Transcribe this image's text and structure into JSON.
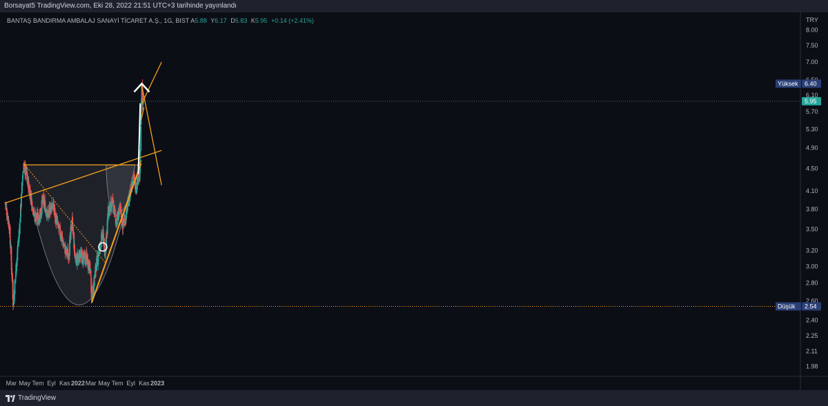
{
  "header": {
    "published_line": "Borsayat5 TradingView.com, Eki 28, 2022 21:51 UTC+3 tarihinde yayınlandı"
  },
  "legend": {
    "symbol": "BANTAŞ BANDIRMA AMBALAJ SANAYİ TİCARET A.Ş., 1G, BIST",
    "open_label": "A",
    "open_value": "5.88",
    "high_label": "Y",
    "high_value": "6.17",
    "low_label": "D",
    "low_value": "5.83",
    "close_label": "K",
    "close_value": "5.95",
    "change": "+0.14 (+2.41%)"
  },
  "footer": {
    "brand": "TradingView"
  },
  "colors": {
    "background": "#0c0e15",
    "up": "#26a69a",
    "down": "#ef5350",
    "drawing": "#f7a11a",
    "price_label_bg": "#26a69a",
    "marker_bg": "#2a3f75"
  },
  "chart_data": {
    "type": "candlestick",
    "currency_label": "TRY",
    "y_ticks": [
      "8.00",
      "7.50",
      "7.00",
      "6.50",
      "6.10",
      "5.70",
      "5.30",
      "4.90",
      "4.50",
      "4.10",
      "3.80",
      "3.50",
      "3.20",
      "3.00",
      "2.80",
      "2.60",
      "2.40",
      "2.25",
      "2.11",
      "1.98"
    ],
    "x_ticks": [
      "Mar",
      "May",
      "Tem",
      "Eyl",
      "Kas",
      "2022",
      "Mar",
      "May",
      "Tem",
      "Eyl",
      "Kas",
      "2023"
    ],
    "bold_x_ticks": [
      "2022",
      "2023"
    ],
    "last_price": "5.95",
    "high_marker": {
      "label": "Yüksek",
      "value": "6.40"
    },
    "low_marker": {
      "label": "Düşük",
      "value": "2.54"
    },
    "scale": "log",
    "ylim": [
      1.9,
      8.6
    ],
    "anchors": [
      [
        "2021-02-01",
        3.9
      ],
      [
        "2021-02-20",
        3.55
      ],
      [
        "2021-03-10",
        2.55
      ],
      [
        "2021-03-25",
        3.05
      ],
      [
        "2021-04-10",
        3.6
      ],
      [
        "2021-04-25",
        4.55
      ],
      [
        "2021-05-10",
        4.4
      ],
      [
        "2021-05-25",
        4.1
      ],
      [
        "2021-06-15",
        3.7
      ],
      [
        "2021-07-05",
        3.65
      ],
      [
        "2021-07-25",
        3.95
      ],
      [
        "2021-08-15",
        3.7
      ],
      [
        "2021-09-05",
        3.9
      ],
      [
        "2021-09-25",
        3.6
      ],
      [
        "2021-10-15",
        3.4
      ],
      [
        "2021-11-05",
        3.2
      ],
      [
        "2021-11-20",
        3.15
      ],
      [
        "2021-12-05",
        3.65
      ],
      [
        "2021-12-20",
        3.05
      ],
      [
        "2022-01-10",
        3.15
      ],
      [
        "2022-01-25",
        3.1
      ],
      [
        "2022-02-10",
        3.1
      ],
      [
        "2022-02-28",
        2.95
      ],
      [
        "2022-03-05",
        2.6
      ],
      [
        "2022-03-25",
        3.0
      ],
      [
        "2022-04-15",
        3.3
      ],
      [
        "2022-04-25",
        3.45
      ],
      [
        "2022-05-05",
        3.15
      ],
      [
        "2022-05-20",
        3.75
      ],
      [
        "2022-06-10",
        3.9
      ],
      [
        "2022-06-25",
        3.6
      ],
      [
        "2022-07-15",
        3.8
      ],
      [
        "2022-07-25",
        3.55
      ],
      [
        "2022-08-10",
        3.7
      ],
      [
        "2022-08-25",
        4.0
      ],
      [
        "2022-09-10",
        4.35
      ],
      [
        "2022-09-25",
        4.15
      ],
      [
        "2022-10-05",
        4.4
      ],
      [
        "2022-10-12",
        4.3
      ],
      [
        "2022-10-18",
        5.6
      ],
      [
        "2022-10-21",
        6.3
      ],
      [
        "2022-10-25",
        5.85
      ],
      [
        "2022-10-28",
        5.95
      ]
    ],
    "drawings": [
      {
        "kind": "line",
        "name": "resistance-line",
        "from": [
          "2021-04-25",
          4.57
        ],
        "to": [
          "2022-09-20",
          4.57
        ]
      },
      {
        "kind": "line",
        "name": "rising-trendline",
        "from": [
          "2021-02-01",
          3.9
        ],
        "to": [
          "2023-01-20",
          4.85
        ]
      },
      {
        "kind": "line",
        "name": "dotted-downtrend",
        "from": [
          "2021-04-25",
          4.6
        ],
        "to": [
          "2022-05-05",
          3.05
        ],
        "dash": true
      },
      {
        "kind": "line",
        "name": "support-trendline",
        "from": [
          "2022-03-05",
          2.58
        ],
        "to": [
          "2022-10-18",
          4.6
        ]
      },
      {
        "kind": "line",
        "name": "triangle-top",
        "from": [
          "2022-10-01",
          4.55
        ],
        "to": [
          "2022-10-20",
          4.65
        ]
      },
      {
        "kind": "line",
        "name": "channel-upper",
        "from": [
          "2022-10-22",
          5.9
        ],
        "to": [
          "2023-01-20",
          7.0
        ]
      },
      {
        "kind": "line",
        "name": "channel-lower",
        "from": [
          "2022-10-18",
          5.5
        ],
        "to": [
          "2022-10-31",
          5.8
        ]
      },
      {
        "kind": "line",
        "name": "projection-down",
        "from": [
          "2022-10-21",
          6.35
        ],
        "to": [
          "2023-01-20",
          4.2
        ]
      }
    ]
  }
}
